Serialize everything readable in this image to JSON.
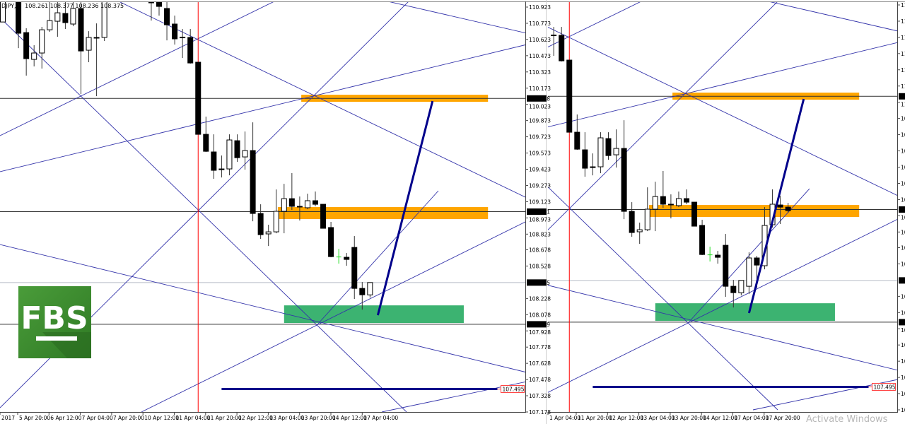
{
  "header": {
    "symbol": "DJPY,H",
    "ohlc": "108.261 108.377 108.236 108.375"
  },
  "logo": {
    "text": "FBS",
    "color": "#3a8a2e"
  },
  "watermark": "Activate Windows",
  "colors": {
    "zone_resistance": "#ffa500",
    "zone_support": "#3cb371",
    "trendline": "#00008b",
    "gann_lines": "#3333aa",
    "vertical_marker": "#ff0000",
    "bear_candle": "#000000",
    "bull_candle": "#ffffff"
  },
  "chart_data": {
    "type": "candlestick",
    "panels": 2,
    "yaxis": {
      "range": [
        107.178,
        110.923
      ],
      "ticks": [
        "110.923",
        "110.773",
        "110.623",
        "110.473",
        "110.323",
        "110.173",
        "110.023",
        "109.873",
        "109.723",
        "109.573",
        "109.423",
        "109.273",
        "109.123",
        "108.973",
        "108.823",
        "108.678",
        "108.528",
        "108.228",
        "108.078",
        "107.928",
        "107.778",
        "107.628",
        "107.478",
        "107.328",
        "107.178"
      ],
      "highlighted": [
        "110.078",
        "109.031",
        "108.375",
        "107.989"
      ],
      "alert_label": "107.495"
    },
    "xaxis_left": [
      "2017",
      "5 Apr 20:00",
      "6 Apr 12:00",
      "7 Apr 04:00",
      "7 Apr 20:00",
      "10 Apr 12:00",
      "11 Apr 04:00",
      "11 Apr 20:00",
      "12 Apr 12:00",
      "13 Apr 04:00",
      "13 Apr 20:00",
      "14 Apr 12:00",
      "17 Apr 04:00"
    ],
    "xaxis_right": [
      "1 Apr 04:00",
      "11 Apr 20:00",
      "12 Apr 12:00",
      "13 Apr 04:00",
      "13 Apr 20:00",
      "14 Apr 12:00",
      "17 Apr 04:00",
      "17 Apr 20:00"
    ],
    "bars_ohlc": [
      [
        110.785,
        110.988,
        110.785,
        110.988
      ],
      null,
      [
        110.988,
        110.988,
        110.543,
        110.681
      ],
      [
        110.687,
        110.727,
        110.289,
        110.446
      ],
      [
        110.439,
        110.57,
        110.374,
        110.498
      ],
      [
        110.498,
        110.74,
        110.354,
        110.713
      ],
      [
        110.713,
        110.988,
        110.694,
        110.798
      ],
      [
        110.792,
        110.988,
        110.648,
        110.87
      ],
      [
        110.864,
        110.988,
        110.72,
        110.779
      ],
      [
        110.766,
        110.988,
        110.746,
        110.91
      ],
      [
        110.91,
        110.988,
        110.119,
        110.517
      ],
      [
        110.524,
        110.7,
        110.413,
        110.642
      ],
      [
        110.642,
        110.772,
        110.099,
        110.642
      ],
      [
        110.642,
        110.988,
        110.609,
        110.988
      ],
      null,
      null,
      null,
      null,
      null,
      [
        110.981,
        110.988,
        110.798,
        110.962
      ],
      [
        110.968,
        110.988,
        110.844,
        110.929
      ],
      [
        110.91,
        110.988,
        110.615,
        110.759
      ],
      [
        110.766,
        110.844,
        110.576,
        110.629
      ],
      [
        110.642,
        110.72,
        110.452,
        110.645
      ],
      [
        110.642,
        110.72,
        110.4,
        110.406
      ],
      [
        110.413,
        110.413,
        109.746,
        109.746
      ],
      [
        109.746,
        109.91,
        109.583,
        109.589
      ],
      [
        109.583,
        109.746,
        109.334,
        109.413
      ],
      [
        109.426,
        109.55,
        109.347,
        109.419
      ],
      [
        109.426,
        109.746,
        109.367,
        109.694
      ],
      [
        109.687,
        109.746,
        109.491,
        109.53
      ],
      [
        109.537,
        109.772,
        109.419,
        109.596
      ],
      [
        109.596,
        109.857,
        108.942,
        109.014
      ],
      [
        109.014,
        109.099,
        108.779,
        108.818
      ],
      [
        108.825,
        108.91,
        108.713,
        108.844
      ],
      [
        108.844,
        109.236,
        108.831,
        109.034
      ],
      [
        109.034,
        109.288,
        108.831,
        109.151
      ],
      [
        109.151,
        109.387,
        109.047,
        109.08
      ],
      [
        109.08,
        109.171,
        108.949,
        109.08
      ],
      [
        109.067,
        109.197,
        109.053,
        109.132
      ],
      [
        109.132,
        109.217,
        109.08,
        109.099
      ],
      [
        109.099,
        109.099,
        108.877,
        108.877
      ],
      [
        108.884,
        108.936,
        108.609,
        108.615
      ],
      [
        108.615,
        108.687,
        108.55,
        108.615
      ],
      [
        108.609,
        108.648,
        108.53,
        108.589
      ],
      [
        108.7,
        108.805,
        108.223,
        108.321
      ],
      [
        108.321,
        108.38,
        108.125,
        108.262
      ],
      [
        108.261,
        108.377,
        108.236,
        108.375
      ],
      [
        108.321,
        108.635,
        108.249,
        108.583
      ],
      [
        108.583,
        108.602,
        108.308,
        108.517
      ],
      [
        108.511,
        109.053,
        108.478,
        108.884
      ],
      [
        108.89,
        109.217,
        108.864,
        109.08
      ],
      [
        109.073,
        109.158,
        108.897,
        109.053
      ],
      [
        109.053,
        109.093,
        109.001,
        109.021
      ]
    ],
    "left_panel_last_bar": 47,
    "right_panel_first_bar": 23,
    "green_bar": 43,
    "vertical_marker_bar": 25,
    "horizontal_levels": [
      {
        "price": 110.078,
        "style": "solid"
      },
      {
        "price": 109.031,
        "style": "solid"
      },
      {
        "price": 108.375,
        "style": "bid"
      },
      {
        "price": 107.989,
        "style": "solid"
      }
    ],
    "zones": [
      {
        "kind": "resistance",
        "from_bar": 38.2,
        "to_bar": 62.1,
        "top": 110.112,
        "bottom": 110.047
      },
      {
        "kind": "resistance",
        "from_bar": 35.2,
        "to_bar": 62.1,
        "top": 109.073,
        "bottom": 108.962
      },
      {
        "kind": "support",
        "from_bar": 36.0,
        "to_bar": 59.0,
        "top": 108.164,
        "bottom": 108.001
      }
    ],
    "projection": {
      "from_bar": 48,
      "from_price": 108.073,
      "to_bar": 55,
      "to_price": 110.053
    },
    "target_line": {
      "from_bar": 28,
      "to_bar": 63.3,
      "price": 107.495
    }
  }
}
